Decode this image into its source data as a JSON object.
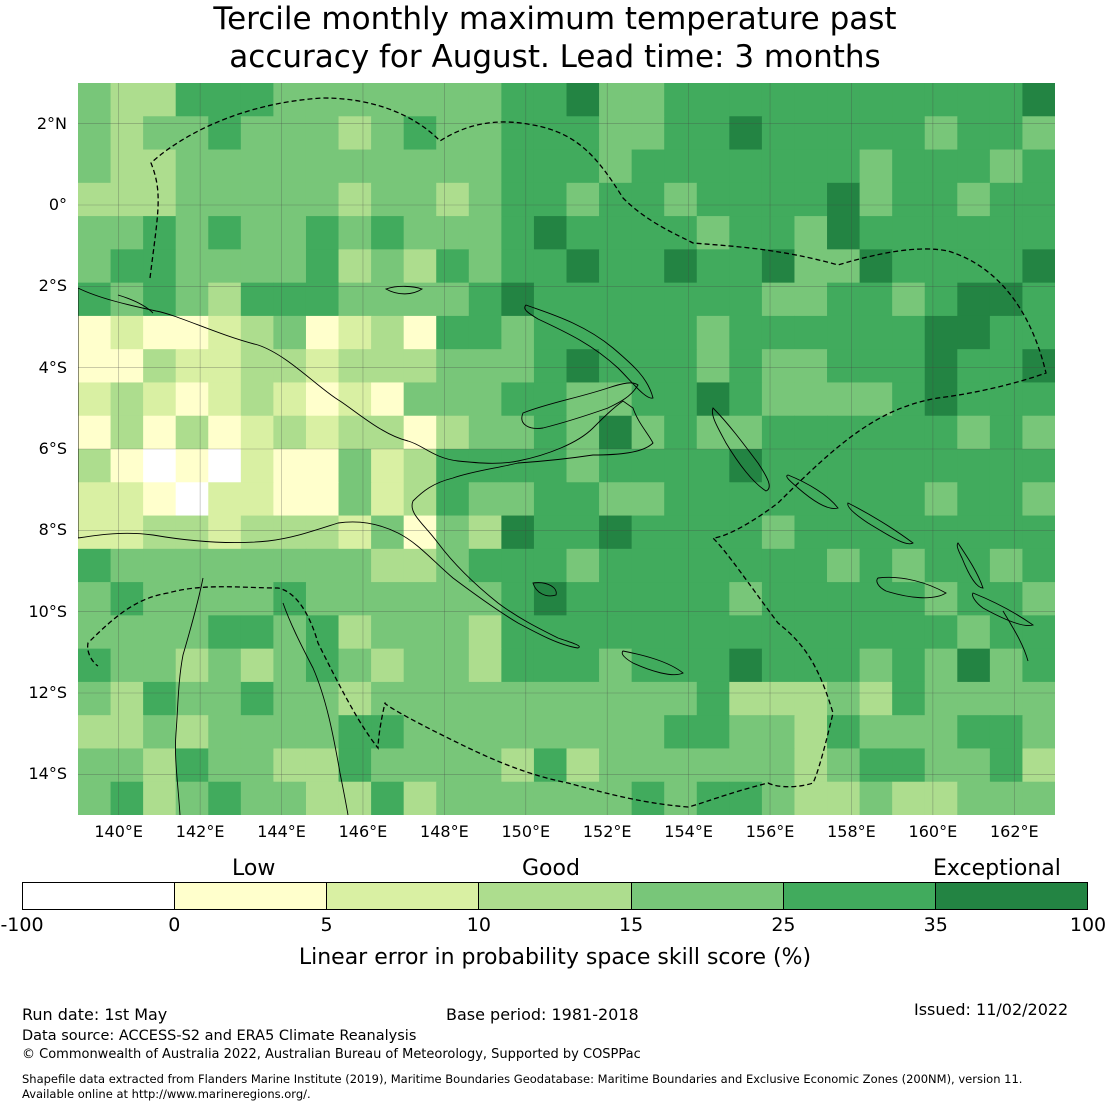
{
  "title_line1": "Tercile monthly maximum temperature past",
  "title_line2": "accuracy for August. Lead time: 3 months",
  "map": {
    "lon_range": [
      139,
      163
    ],
    "lat_range": [
      -15,
      3
    ],
    "lat_ticks": [
      "2°N",
      "0°",
      "2°S",
      "4°S",
      "6°S",
      "8°S",
      "10°S",
      "12°S",
      "14°S"
    ],
    "lon_ticks": [
      "140°E",
      "142°E",
      "144°E",
      "146°E",
      "148°E",
      "150°E",
      "152°E",
      "154°E",
      "156°E",
      "158°E",
      "160°E",
      "162°E"
    ],
    "grid": "on"
  },
  "colorbar": {
    "categories": [
      "Low",
      "Good",
      "Exceptional"
    ],
    "bounds": [
      "-100",
      "0",
      "5",
      "10",
      "15",
      "25",
      "35",
      "100"
    ],
    "colors": [
      "#ffffff",
      "#ffffcc",
      "#d9f0a3",
      "#addd8e",
      "#78c679",
      "#41ab5d",
      "#238443"
    ],
    "label": "Linear error in probability space skill score (%)"
  },
  "footer": {
    "run_date": "Run date: 1st May",
    "base_period": "Base period: 1981-2018",
    "issued": "Issued: 11/02/2022",
    "data_source": "Data source: ACCESS-S2 and ERA5 Climate Reanalysis",
    "copyright": "© Commonwealth of Australia 2022, Australian Bureau of Meteorology, Supported by COSPPac",
    "shapefile_line1": "Shapefile data extracted from Flanders Marine Institute (2019), Maritime Boundaries Geodatabase: Maritime Boundaries and Exclusive Economic Zones (200NM), version 11.",
    "shapefile_line2": "Available online at http://www.marineregions.org/."
  }
}
